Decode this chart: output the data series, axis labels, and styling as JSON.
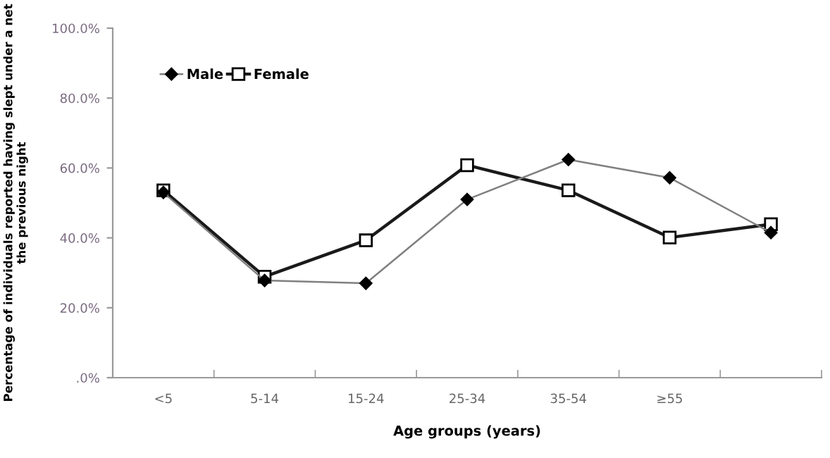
{
  "chart_data": {
    "type": "line",
    "xlabel": "Age groups (years)",
    "ylabel": "Percentage of individuals reported having slept under a net\nthe previous night",
    "categories": [
      "<5",
      "5-14",
      "15-24",
      "25-34",
      "35-54",
      "≥55",
      null
    ],
    "series": [
      {
        "name": "Male",
        "color": "#808080",
        "marker": "diamond",
        "values": [
          53.0,
          27.8,
          27.0,
          51.0,
          62.4,
          57.2,
          41.5
        ]
      },
      {
        "name": "Female",
        "color": "#1a1a1a",
        "marker": "square",
        "values": [
          53.6,
          28.9,
          39.3,
          60.8,
          53.6,
          40.1,
          43.9
        ]
      }
    ],
    "ylim": [
      0,
      100
    ],
    "yticks": [
      {
        "value": 0,
        "label": ".0%"
      },
      {
        "value": 20,
        "label": "20.0%"
      },
      {
        "value": 40,
        "label": "40.0%"
      },
      {
        "value": 60,
        "label": "60.0%"
      },
      {
        "value": 80,
        "label": "80.0%"
      },
      {
        "value": 100,
        "label": "100.0%"
      }
    ],
    "grid": false,
    "legend": "top left",
    "line_style": "solid"
  }
}
